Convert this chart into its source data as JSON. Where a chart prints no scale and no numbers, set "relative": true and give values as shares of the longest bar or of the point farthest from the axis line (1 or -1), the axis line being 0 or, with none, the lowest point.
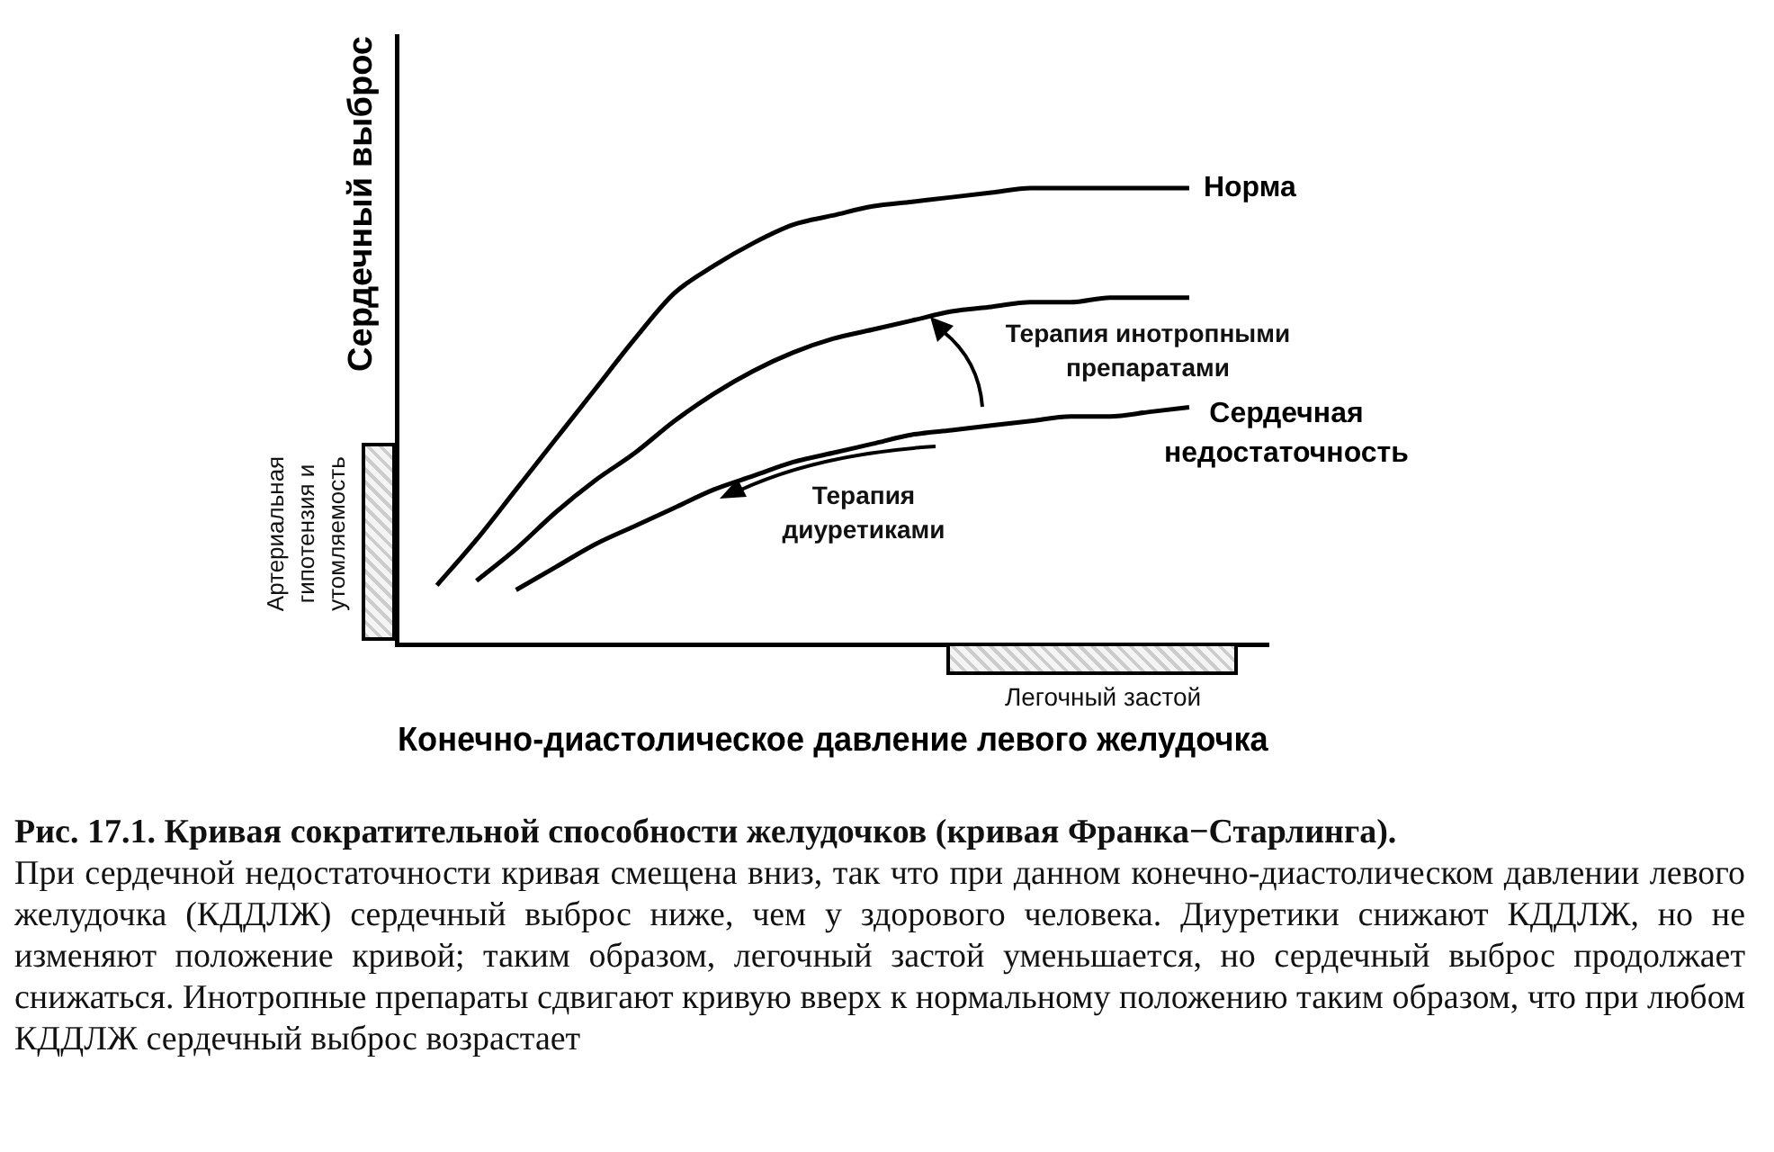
{
  "chart_data": {
    "type": "line",
    "relative": true,
    "xlabel": "Конечно-диастолическое давление левого желудочка",
    "ylabel": "Сердечный выброс",
    "marker": "none",
    "line_style": "solid",
    "categories": [
      null,
      null,
      null,
      null,
      null,
      null,
      null,
      null,
      null,
      null,
      null,
      null,
      null,
      null,
      null,
      null,
      null,
      null,
      null,
      null,
      null,
      null,
      null
    ],
    "series": [
      {
        "name": "Норма",
        "color": "#000000",
        "values": [
          null,
          0.13,
          0.23,
          0.34,
          0.45,
          0.56,
          0.67,
          0.77,
          0.83,
          0.88,
          0.92,
          0.94,
          0.96,
          0.97,
          0.98,
          0.99,
          1.0,
          1.0,
          1.0,
          1.0,
          1.0,
          null,
          null
        ]
      },
      {
        "color": "#000000",
        "values": [
          null,
          null,
          0.14,
          0.21,
          0.29,
          0.36,
          0.42,
          0.49,
          0.55,
          0.6,
          0.64,
          0.67,
          0.69,
          0.71,
          0.73,
          0.74,
          0.75,
          0.75,
          0.76,
          0.76,
          0.76,
          null,
          null
        ]
      },
      {
        "name": "Сердечная недостаточность",
        "color": "#000000",
        "values": [
          null,
          null,
          null,
          0.12,
          0.17,
          0.22,
          0.26,
          0.3,
          0.34,
          0.37,
          0.4,
          0.42,
          0.44,
          0.46,
          0.47,
          0.48,
          0.49,
          0.5,
          0.5,
          0.51,
          0.52,
          null,
          null
        ]
      }
    ],
    "annotations": [
      "Терапия инотропными препаратами",
      "Терапия диуретиками",
      "Артериальная гипотензия и утомляемость",
      "Легочный застой",
      "Рис. 17.1. Кривая сократительной способности желудочков (кривая Франка−Старлинга).",
      "При сердечной недостаточности кривая смещена вниз, так что при данном конечно-диастолическом давлении левого желудочка (КДДЛЖ) сердечный выброс ниже, чем у здорового человека. Диуретики снижают КДДЛЖ, но не изменяют положение кривой; таким образом, легочный застой уменьшается, но сердечный выброс продолжает снижаться. Инотропные препараты сдвигают кривую вверх к нормальному положению таким образом, что при любом КДДЛЖ сердечный выброс возрастает"
    ]
  }
}
